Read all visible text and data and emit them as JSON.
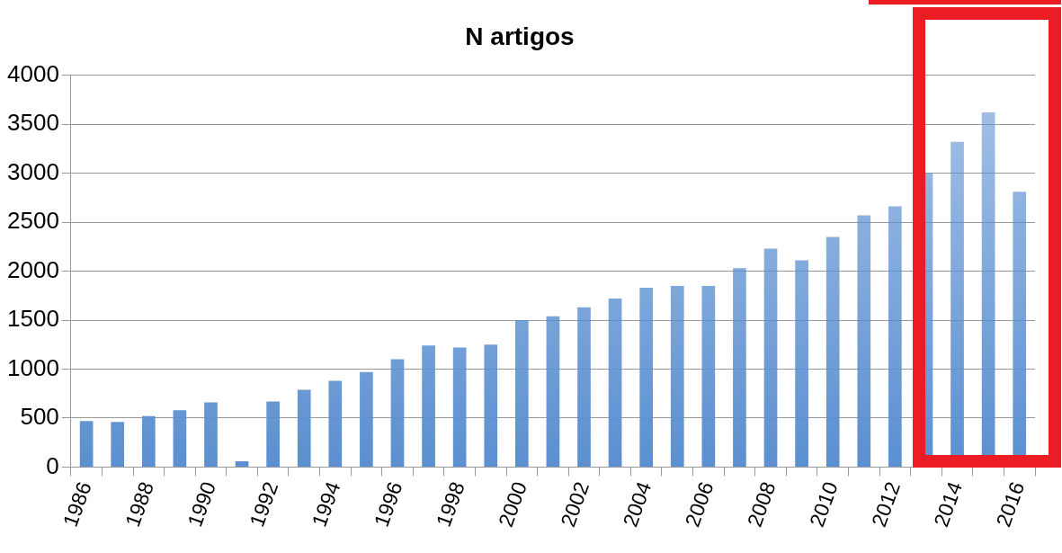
{
  "chart_data": {
    "type": "bar",
    "title": "N artigos",
    "categories": [
      "1986",
      null,
      "1988",
      null,
      "1990",
      null,
      "1992",
      null,
      "1994",
      null,
      "1996",
      null,
      "1998",
      null,
      "2000",
      null,
      "2002",
      null,
      "2004",
      null,
      "2006",
      null,
      "2008",
      null,
      "2010",
      null,
      "2012",
      null,
      "2014",
      null,
      "2016"
    ],
    "values": [
      470,
      460,
      520,
      580,
      660,
      60,
      670,
      790,
      880,
      970,
      1100,
      1240,
      1220,
      1250,
      1500,
      1540,
      1630,
      1720,
      1830,
      1850,
      1850,
      2030,
      2230,
      2110,
      2350,
      2570,
      2660,
      3000,
      3320,
      3620,
      2810
    ],
    "color": "#5b8fd0",
    "ylim": [
      0,
      4000
    ],
    "yticks": [
      0,
      500,
      1000,
      1500,
      2000,
      2500,
      3000,
      3500,
      4000
    ],
    "grid": "y",
    "legend": false
  }
}
